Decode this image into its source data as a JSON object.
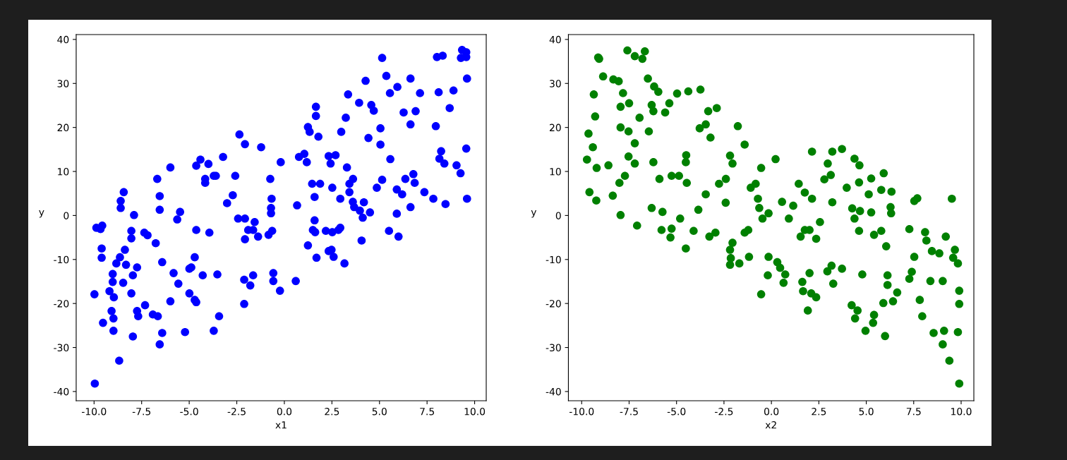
{
  "chart_data": [
    {
      "type": "scatter",
      "xlabel": "x1",
      "ylabel": "y",
      "marker": "circle",
      "xlim": [
        -10.94,
        10.61
      ],
      "ylim": [
        -42.1,
        41.1
      ],
      "xticks": [
        {
          "value": -10,
          "label": "-10.0"
        },
        {
          "value": -7.5,
          "label": "-7.5"
        },
        {
          "value": -5,
          "label": "-5.0"
        },
        {
          "value": -2.5,
          "label": "-2.5"
        },
        {
          "value": 0,
          "label": "0.0"
        },
        {
          "value": 2.5,
          "label": "2.5"
        },
        {
          "value": 5,
          "label": "5.0"
        },
        {
          "value": 7.5,
          "label": "7.5"
        },
        {
          "value": 10,
          "label": "10.0"
        }
      ],
      "yticks": [
        -40,
        -30,
        -20,
        -10,
        0,
        10,
        20,
        30,
        40
      ],
      "series": [
        {
          "color": "#0000ff",
          "x": [
            -9.96,
            -8.68,
            -9.98,
            -9.53,
            -8.98,
            -8.98,
            -9.08,
            -9.19,
            -8.96,
            -9.02,
            -9.02,
            -8.47,
            -8.04,
            -7.96,
            -7.74,
            -7.68,
            -7.32,
            -6.91,
            -6.65,
            -6.42,
            -6.55,
            -5.99,
            -5.22,
            -4.99,
            -4.71,
            -4.63,
            -3.71,
            -3.43,
            -3.52,
            -4.29,
            -5.57,
            -5.82,
            -6.42,
            -7.96,
            -7.74,
            -8.32,
            -8.83,
            -8.64,
            -8.38,
            -9.6,
            -9.6,
            -6.76,
            -7.19,
            -7.36,
            -8.04,
            -8.04,
            -9.88,
            -9.66,
            -9.57,
            -7.9,
            -8.6,
            -8.6,
            -8.44,
            -6.55,
            -6.55,
            -6.68,
            -5.99,
            -5.63,
            -5.48,
            -4.63,
            -3.94,
            -4.71,
            -4.89,
            -4.99,
            -4.63,
            -4.41,
            -3.99,
            -3.22,
            -4.16,
            -4.16,
            -2.58,
            -3.6,
            -3.71,
            -2.71,
            -3.01,
            -2.36,
            -2.07,
            -1.22,
            -2.43,
            -2.07,
            -1.56,
            -2.07,
            -1.9,
            -1.64,
            -1.38,
            -2.11,
            -1.79,
            -1.64,
            -2.11,
            -0.74,
            -0.67,
            -0.7,
            -0.7,
            -0.83,
            -0.64,
            -0.58,
            -0.58,
            -0.23,
            -0.19,
            0.67,
            0.6,
            0.77,
            1.05,
            1.18,
            1.24,
            1.33,
            1.79,
            1.66,
            1.66,
            1.46,
            1.88,
            1.59,
            1.59,
            1.5,
            1.62,
            1.24,
            1.69,
            2.18,
            2.52,
            2.84,
            2.94,
            2.33,
            2.48,
            2.59,
            3.16,
            2.33,
            2.69,
            2.43,
            2.52,
            2.94,
            2.99,
            3.23,
            3.35,
            3.29,
            3.42,
            3.61,
            3.42,
            3.6,
            3.67,
            3.97,
            4.12,
            4.18,
            4.5,
            4.06,
            3.93,
            4.27,
            4.57,
            4.7,
            4.42,
            5.05,
            5.05,
            4.86,
            5.14,
            5.14,
            5.36,
            5.57,
            5.55,
            5.94,
            5.5,
            6.0,
            5.91,
            6.19,
            5.91,
            6.27,
            6.63,
            6.63,
            6.36,
            6.78,
            6.85,
            6.63,
            6.9,
            7.13,
            7.36,
            7.83,
            8.47,
            7.96,
            8.11,
            8.02,
            8.32,
            8.24,
            8.15,
            8.41,
            8.69,
            8.89,
            9.05,
            9.26,
            9.28,
            9.34,
            9.56,
            9.56,
            9.6,
            9.56,
            9.6
          ],
          "values": [
            -38.2,
            -33.0,
            -17.9,
            -24.4,
            -26.2,
            -23.4,
            -21.7,
            -17.2,
            -18.6,
            -13.3,
            -15.1,
            -15.3,
            -17.7,
            -27.5,
            -21.7,
            -22.9,
            -20.4,
            -22.5,
            -22.9,
            -26.7,
            -29.3,
            -19.5,
            -26.5,
            -17.7,
            -19.2,
            -19.7,
            -26.2,
            -22.9,
            -13.4,
            -13.6,
            -15.5,
            -13.1,
            -10.6,
            -13.6,
            -11.8,
            -11.2,
            -10.9,
            -9.5,
            -7.8,
            -7.5,
            -9.6,
            -6.3,
            -4.5,
            -3.9,
            -3.5,
            -5.2,
            -2.8,
            -3.1,
            -2.3,
            0.1,
            1.7,
            3.3,
            5.3,
            1.3,
            4.4,
            8.3,
            10.9,
            -0.9,
            0.8,
            -3.3,
            -3.9,
            -9.5,
            -11.8,
            -12.1,
            11.3,
            12.7,
            11.7,
            13.3,
            8.3,
            7.4,
            9.0,
            9.0,
            9.0,
            4.6,
            2.8,
            18.4,
            16.2,
            15.5,
            -0.7,
            -0.7,
            -1.5,
            -5.4,
            -3.3,
            -3.3,
            -4.8,
            -14.6,
            -15.9,
            -13.6,
            -20.1,
            8.3,
            3.8,
            1.7,
            0.5,
            -4.4,
            -3.5,
            -13.1,
            -14.9,
            -17.1,
            12.1,
            2.3,
            -14.9,
            13.3,
            14.0,
            12.1,
            20.1,
            19.0,
            17.9,
            24.7,
            22.6,
            7.2,
            7.2,
            4.2,
            -1.1,
            -3.3,
            -3.8,
            -6.8,
            -9.6,
            -3.5,
            -3.8,
            -3.3,
            -2.8,
            -8.1,
            -7.8,
            -9.4,
            -10.9,
            13.5,
            13.7,
            11.8,
            6.3,
            3.8,
            19.0,
            22.2,
            27.5,
            10.9,
            7.2,
            8.3,
            5.3,
            3.1,
            1.9,
            1.1,
            -0.5,
            3.0,
            0.7,
            -5.7,
            25.6,
            30.6,
            25.1,
            23.8,
            17.6,
            19.8,
            16.1,
            6.3,
            8.1,
            35.8,
            31.7,
            12.8,
            27.8,
            29.2,
            -3.5,
            -4.8,
            5.9,
            4.8,
            0.4,
            23.4,
            20.7,
            31.1,
            8.3,
            9.4,
            7.4,
            1.9,
            23.7,
            27.8,
            5.3,
            3.8,
            2.6,
            20.3,
            28.0,
            36.0,
            36.3,
            14.6,
            12.9,
            11.8,
            24.4,
            28.4,
            11.4,
            9.6,
            35.8,
            37.6,
            37.1,
            36.0,
            31.1,
            15.2,
            3.8
          ]
        }
      ]
    },
    {
      "type": "scatter",
      "xlabel": "x2",
      "ylabel": "y",
      "marker": "circle",
      "xlim": [
        -10.7,
        10.67
      ],
      "ylim": [
        -42.1,
        41.1
      ],
      "xticks": [
        {
          "value": -10,
          "label": "-10.0"
        },
        {
          "value": -7.5,
          "label": "-7.5"
        },
        {
          "value": -5,
          "label": "-5.0"
        },
        {
          "value": -2.5,
          "label": "-2.5"
        },
        {
          "value": 0,
          "label": "0.0"
        },
        {
          "value": 2.5,
          "label": "2.5"
        },
        {
          "value": 5,
          "label": "5.0"
        },
        {
          "value": 7.5,
          "label": "7.5"
        },
        {
          "value": 10,
          "label": "10.0"
        }
      ],
      "yticks": [
        -40,
        -30,
        -20,
        -10,
        0,
        10,
        20,
        30,
        40
      ],
      "series": [
        {
          "color": "#008000",
          "x": [
            -9.13,
            -9.08,
            -7.59,
            -7.2,
            -6.8,
            -6.67,
            -8.87,
            -8.33,
            -8.05,
            -6.51,
            -9.36,
            -7.82,
            -6.18,
            -5.96,
            -4.97,
            -4.38,
            -3.74,
            -7.5,
            -7.95,
            -6.31,
            -6.22,
            -5.38,
            -5.6,
            -6.95,
            -9.29,
            -3.33,
            -2.88,
            -9.64,
            -7.95,
            -7.53,
            -6.46,
            -3.78,
            -3.46,
            -3.21,
            -1.77,
            -7.2,
            -1.41,
            -9.41,
            -9.72,
            -9.21,
            -8.59,
            -7.53,
            -7.2,
            -6.22,
            -4.49,
            -4.51,
            -2.18,
            -2.05,
            -0.54,
            -8.01,
            -7.72,
            -5.9,
            -5.26,
            -4.87,
            -4.46,
            -2.76,
            -2.4,
            -1.09,
            -0.83,
            -9.59,
            -9.23,
            -8.36,
            -3.46,
            -2.41,
            -0.71,
            -0.64,
            -0.47,
            -0.15,
            -7.95,
            -7.08,
            -6.31,
            -5.74,
            -4.81,
            -3.85,
            -5.79,
            -5.26,
            -5.32,
            -4.1,
            -4.51,
            -3.27,
            -2.95,
            -1.41,
            -1.22,
            -2.05,
            -2.18,
            -2.14,
            -2.18,
            -1.69,
            -1.18,
            -0.15,
            -0.19,
            -0.54,
            0.22,
            2.14,
            3.21,
            3.72,
            4.38,
            4.64,
            2.97,
            1.44,
            1.76,
            2.14,
            2.79,
            3.13,
            3.97,
            4.62,
            5.26,
            5.92,
            5.13,
            5.79,
            6.33,
            0.56,
            1.15,
            0.92,
            3.21,
            4.26,
            4.38,
            4.67,
            5.26,
            6.28,
            6.31,
            2.56,
            1.76,
            2.01,
            1.54,
            2.36,
            4.62,
            5.41,
            5.79,
            6.05,
            7.27,
            8.1,
            8.17,
            9.19,
            9.51,
            7.53,
            7.69,
            8.46,
            8.85,
            9.67,
            9.58,
            9.83,
            7.53,
            0.31,
            0.46,
            0.73,
            0.64,
            1.63,
            2.01,
            1.67,
            2.1,
            2.36,
            1.92,
            2.95,
            3.17,
            3.26,
            3.72,
            4.79,
            6.12,
            6.12,
            6.63,
            5.9,
            6.41,
            7.27,
            7.4,
            7.82,
            7.95,
            8.38,
            9.03,
            9.9,
            9.9,
            4.23,
            4.54,
            4.41,
            5.41,
            5.36,
            4.96,
            5.99,
            8.55,
            9.1,
            9.83,
            9.03,
            9.38,
            9.9
          ],
          "values": [
            35.9,
            35.6,
            37.5,
            36.2,
            35.6,
            37.3,
            31.6,
            30.9,
            30.5,
            31.1,
            27.5,
            27.8,
            29.3,
            28.1,
            27.7,
            28.2,
            28.6,
            25.5,
            24.7,
            25.1,
            23.7,
            25.5,
            23.4,
            22.2,
            22.5,
            23.7,
            24.4,
            18.6,
            20.0,
            19.1,
            19.1,
            19.8,
            20.7,
            17.7,
            20.3,
            16.4,
            16.1,
            15.5,
            12.7,
            10.8,
            11.4,
            13.4,
            11.8,
            12.1,
            13.7,
            12.1,
            13.6,
            11.8,
            10.8,
            7.4,
            9.0,
            8.3,
            9.0,
            9.0,
            7.4,
            7.2,
            8.3,
            6.3,
            7.2,
            5.3,
            3.4,
            4.5,
            4.8,
            2.9,
            3.8,
            1.7,
            -0.7,
            0.5,
            0.1,
            -2.3,
            1.7,
            0.8,
            -0.7,
            1.3,
            -3.3,
            -3.0,
            -5.0,
            -3.5,
            -7.5,
            -4.8,
            -3.9,
            -3.9,
            -3.3,
            -6.2,
            -7.8,
            -9.7,
            -11.2,
            -10.9,
            -9.4,
            -9.4,
            -13.6,
            -17.9,
            12.8,
            14.5,
            14.5,
            15.1,
            12.9,
            11.4,
            11.8,
            7.2,
            5.2,
            3.8,
            8.2,
            9.2,
            6.3,
            7.5,
            8.4,
            9.6,
            4.8,
            5.8,
            5.4,
            3.1,
            2.2,
            -0.7,
            3.0,
            1.6,
            -0.7,
            1.0,
            0.7,
            1.9,
            0.5,
            -1.5,
            -3.3,
            -3.3,
            -4.8,
            -5.3,
            -3.5,
            -4.4,
            -3.5,
            -7.0,
            -3.1,
            -3.8,
            -5.7,
            -4.8,
            3.8,
            3.3,
            3.9,
            -8.1,
            -8.6,
            -7.8,
            -9.6,
            -10.9,
            -9.4,
            -10.6,
            -11.9,
            -13.4,
            -15.3,
            -15.1,
            -13.1,
            -17.2,
            -17.7,
            -18.6,
            -21.6,
            -12.7,
            -11.4,
            -15.5,
            -12.1,
            -13.4,
            -13.6,
            -15.8,
            -17.5,
            -19.9,
            -19.5,
            -14.4,
            -12.8,
            -19.2,
            -22.9,
            -14.9,
            -14.9,
            -17.1,
            -20.1,
            -20.4,
            -21.6,
            -23.4,
            -22.6,
            -24.4,
            -26.2,
            -27.4,
            -26.7,
            -26.2,
            -26.5,
            -29.3,
            -33.0,
            -38.2
          ]
        }
      ]
    }
  ]
}
